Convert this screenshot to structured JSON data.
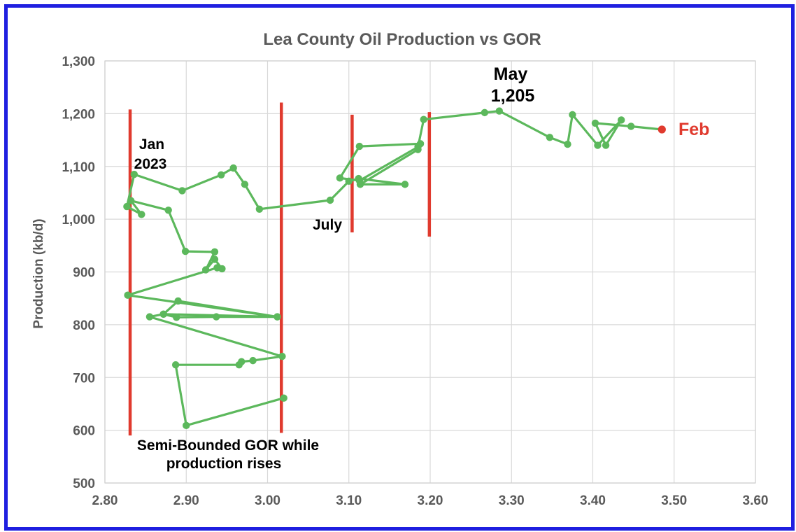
{
  "chart_data": {
    "type": "line",
    "title": "Lea County Oil Production vs GOR",
    "xlabel": "",
    "ylabel": "Production (kb/d)",
    "xlim": [
      2.8,
      3.6
    ],
    "ylim": [
      500,
      1300
    ],
    "x_ticks": [
      "2.80",
      "2.90",
      "3.00",
      "3.10",
      "3.20",
      "3.30",
      "3.40",
      "3.50",
      "3.60"
    ],
    "y_ticks": [
      "500",
      "600",
      "700",
      "800",
      "900",
      "1,000",
      "1,100",
      "1,200",
      "1,300"
    ],
    "grid": true,
    "series": [
      {
        "color": "#5cb85c",
        "points": [
          [
            3.02,
            661
          ],
          [
            2.9,
            609
          ],
          [
            2.887,
            724
          ],
          [
            2.965,
            724
          ],
          [
            2.968,
            730
          ],
          [
            2.982,
            732
          ],
          [
            3.018,
            740
          ],
          [
            2.855,
            815
          ],
          [
            2.872,
            820
          ],
          [
            2.888,
            814
          ],
          [
            2.937,
            815
          ],
          [
            3.012,
            815
          ],
          [
            2.872,
            820
          ],
          [
            2.89,
            845
          ],
          [
            3.012,
            815
          ],
          [
            2.828,
            856
          ],
          [
            2.938,
            908
          ],
          [
            2.944,
            906
          ],
          [
            2.935,
            924
          ],
          [
            2.924,
            904
          ],
          [
            2.935,
            938
          ],
          [
            2.899,
            939
          ],
          [
            2.878,
            1017
          ],
          [
            2.832,
            1035
          ],
          [
            2.845,
            1009
          ],
          [
            2.827,
            1024
          ],
          [
            2.836,
            1085
          ],
          [
            2.895,
            1054
          ],
          [
            2.943,
            1084
          ],
          [
            2.958,
            1097
          ],
          [
            2.972,
            1066
          ],
          [
            2.99,
            1019
          ],
          [
            3.077,
            1036
          ],
          [
            3.1,
            1072
          ],
          [
            3.112,
            1077
          ],
          [
            3.169,
            1066
          ],
          [
            3.114,
            1066
          ],
          [
            3.185,
            1132
          ],
          [
            3.188,
            1143
          ],
          [
            3.113,
            1138
          ],
          [
            3.089,
            1078
          ],
          [
            3.113,
            1073
          ],
          [
            3.185,
            1137
          ],
          [
            3.192,
            1189
          ],
          [
            3.267,
            1202
          ],
          [
            3.285,
            1205
          ],
          [
            3.347,
            1155
          ],
          [
            3.369,
            1142
          ],
          [
            3.375,
            1198
          ],
          [
            3.406,
            1140
          ],
          [
            3.435,
            1188
          ],
          [
            3.416,
            1140
          ],
          [
            3.403,
            1182
          ],
          [
            3.447,
            1176
          ],
          [
            3.485,
            1170
          ]
        ]
      }
    ],
    "vertical_lines": [
      {
        "x": 2.831,
        "y_from": 590,
        "y_to": 1208
      },
      {
        "x": 3.017,
        "y_from": 595,
        "y_to": 1221
      },
      {
        "x": 3.104,
        "y_from": 975,
        "y_to": 1198
      },
      {
        "x": 3.199,
        "y_from": 967,
        "y_to": 1203
      }
    ],
    "vertical_line_color": "#e03a2e",
    "highlight_point": {
      "x": 3.485,
      "y": 1170,
      "color": "#e03a2e"
    },
    "annotations": {
      "jan_line1": "Jan",
      "jan_line2": "2023",
      "july": "July",
      "may_line1": "May",
      "may_line2": "1,205",
      "feb": "Feb",
      "bounded_line1": "Semi-Bounded GOR while",
      "bounded_line2": "production rises"
    }
  }
}
